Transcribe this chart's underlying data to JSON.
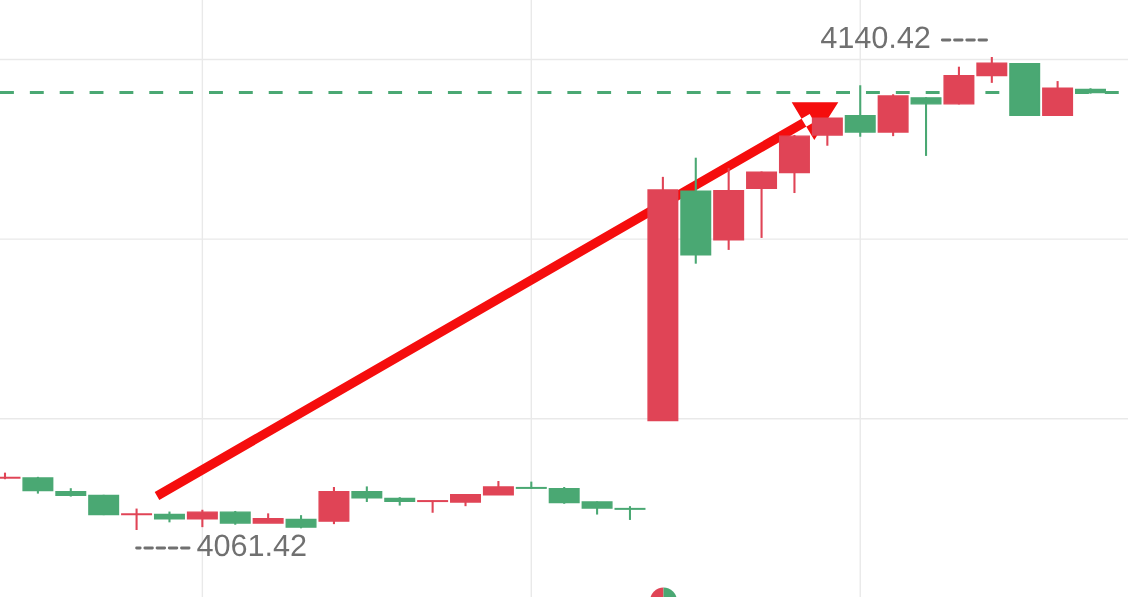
{
  "chart_data": {
    "type": "candlestick",
    "categories": [
      null,
      null,
      null,
      null,
      null,
      null,
      null,
      null,
      null,
      null,
      null,
      null,
      null,
      null,
      null,
      null,
      null,
      null,
      null,
      null,
      null,
      null,
      null,
      null,
      null,
      null,
      null,
      null,
      null,
      null,
      null,
      null,
      null,
      null
    ],
    "ohlc": [
      [
        4070.1,
        4071.0,
        4069.9,
        4070.2
      ],
      [
        4070.1,
        4070.3,
        4067.5,
        4068.0
      ],
      [
        4067.8,
        4068.4,
        4067.0,
        4067.2
      ],
      [
        4067.2,
        4067.3,
        4063.9,
        4064.0
      ],
      [
        4064.0,
        4065.0,
        4061.42,
        4064.1
      ],
      [
        4064.0,
        4064.5,
        4062.7,
        4063.3
      ],
      [
        4063.3,
        4064.8,
        4061.9,
        4064.4
      ],
      [
        4064.4,
        4064.6,
        4062.3,
        4062.6
      ],
      [
        4062.6,
        4064.2,
        4062.6,
        4063.3
      ],
      [
        4063.2,
        4063.9,
        4061.7,
        4061.9
      ],
      [
        4062.9,
        4068.6,
        4062.4,
        4067.8
      ],
      [
        4067.8,
        4068.7,
        4066.1,
        4066.8
      ],
      [
        4066.7,
        4066.9,
        4065.5,
        4066.2
      ],
      [
        4066.2,
        4066.3,
        4064.3,
        4066.3
      ],
      [
        4066.1,
        4067.4,
        4065.4,
        4067.3
      ],
      [
        4067.3,
        4069.6,
        4067.3,
        4068.6
      ],
      [
        4068.5,
        4069.5,
        4068.3,
        4068.4
      ],
      [
        4068.3,
        4068.6,
        4065.8,
        4066.0
      ],
      [
        4066.1,
        4066.2,
        4064.0,
        4065.1
      ],
      [
        4065.0,
        4065.4,
        4063.1,
        4064.9
      ],
      [
        4079.7,
        4120.4,
        4079.7,
        4118.2
      ],
      [
        4118.0,
        4123.6,
        4105.9,
        4107.4
      ],
      [
        4109.9,
        4121.9,
        4108.2,
        4118.1
      ],
      [
        4118.5,
        4121.3,
        4110.2,
        4121.2
      ],
      [
        4121.1,
        4127.4,
        4117.7,
        4127.2
      ],
      [
        4127.4,
        4130.2,
        4125.6,
        4130.2
      ],
      [
        4130.6,
        4135.7,
        4127.1,
        4127.9
      ],
      [
        4127.9,
        4134.2,
        4127.2,
        4133.9
      ],
      [
        4133.6,
        4133.7,
        4123.9,
        4132.6
      ],
      [
        4132.6,
        4138.8,
        4132.5,
        4137.3
      ],
      [
        4137.3,
        4140.42,
        4136.1,
        4139.4
      ],
      [
        4139.3,
        4139.3,
        4130.7,
        4130.7
      ],
      [
        4130.7,
        4136.4,
        4130.7,
        4135.2
      ],
      [
        4135.0,
        4135.2,
        4134.3,
        4134.5
      ]
    ],
    "colors": [
      "#e04456",
      "#4aa873",
      "#4aa873",
      "#4aa873",
      "#e04456",
      "#4aa873",
      "#e04456",
      "#4aa873",
      "#e04456",
      "#4aa873",
      "#e04456",
      "#4aa873",
      "#4aa873",
      "#e04456",
      "#e04456",
      "#e04456",
      "#4aa873",
      "#4aa873",
      "#4aa873",
      "#4aa873",
      "#e04456",
      "#4aa873",
      "#e04456",
      "#e04456",
      "#e04456",
      "#e04456",
      "#4aa873",
      "#e04456",
      "#4aa873",
      "#e04456",
      "#e04456",
      "#4aa873",
      "#e04456",
      "#4aa873"
    ],
    "ref_lines": [
      {
        "axis": "y",
        "value": 4134.5,
        "color": "#4aa873",
        "line_style": "dashed"
      }
    ],
    "annotations": [
      "4140.42",
      "4061.42"
    ],
    "yticks": [
      {
        "value": 4080,
        "label": null
      },
      {
        "value": 4110,
        "label": null
      },
      {
        "value": 4140,
        "label": null
      }
    ],
    "grid": true
  }
}
